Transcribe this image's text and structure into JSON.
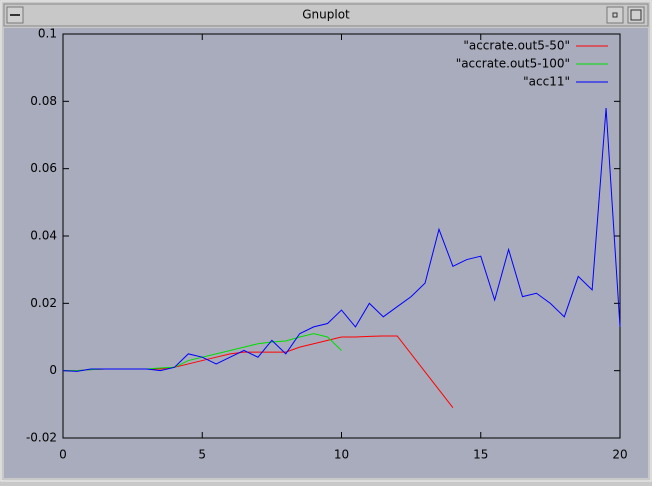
{
  "window": {
    "title": "Gnuplot"
  },
  "chart_data": {
    "type": "line",
    "xlim": [
      0,
      20
    ],
    "xticks": [
      0,
      5,
      10,
      15,
      20
    ],
    "ylim": [
      -0.02,
      0.1
    ],
    "yticks": [
      -0.02,
      0,
      0.02,
      0.04,
      0.06,
      0.08,
      0.1
    ],
    "legend": "top-right",
    "series": [
      {
        "name": "\"accrate.out5-50\"",
        "color": "#ff0000",
        "x": [
          0,
          0.5,
          1,
          1.5,
          2,
          2.5,
          3,
          3.5,
          4,
          4.5,
          5,
          5.5,
          6,
          6.5,
          7,
          7.5,
          8,
          8.5,
          9,
          9.5,
          10,
          10.5,
          11,
          11.5,
          12,
          14
        ],
        "values": [
          0,
          0,
          0.0003,
          0.0005,
          0.0005,
          0.0005,
          0.0005,
          0.0005,
          0.001,
          0.002,
          0.003,
          0.004,
          0.005,
          0.0055,
          0.0055,
          0.0055,
          0.0055,
          0.007,
          0.008,
          0.009,
          0.01,
          0.01,
          0.0102,
          0.0103,
          0.0103,
          -0.011
        ]
      },
      {
        "name": "\"accrate.out5-100\"",
        "color": "#00dd00",
        "x": [
          0,
          0.5,
          1,
          1.5,
          2,
          2.5,
          3,
          3.5,
          4,
          4.5,
          5,
          5.5,
          6,
          6.5,
          7,
          7.5,
          8,
          8.5,
          9,
          9.5,
          10
        ],
        "values": [
          0,
          0,
          0.0003,
          0.0005,
          0.0005,
          0.0005,
          0.0005,
          0.0008,
          0.001,
          0.003,
          0.004,
          0.005,
          0.006,
          0.007,
          0.008,
          0.0085,
          0.0088,
          0.01,
          0.011,
          0.01,
          0.006
        ]
      },
      {
        "name": "\"acc11\"",
        "color": "#0000ff",
        "x": [
          0,
          0.5,
          1,
          1.5,
          2,
          2.5,
          3,
          3.5,
          4,
          4.5,
          5,
          5.5,
          6,
          6.5,
          7,
          7.5,
          8,
          8.5,
          9,
          9.5,
          10,
          10.5,
          11,
          11.5,
          12,
          12.5,
          13,
          13.5,
          14,
          14.5,
          15,
          15.5,
          16,
          16.5,
          17,
          17.5,
          18,
          18.5,
          19,
          19.5,
          20
        ],
        "values": [
          0,
          -0.0002,
          0.0005,
          0.0005,
          0.0005,
          0.0005,
          0.0005,
          0,
          0.001,
          0.005,
          0.004,
          0.002,
          0.004,
          0.006,
          0.004,
          0.009,
          0.005,
          0.011,
          0.013,
          0.014,
          0.018,
          0.013,
          0.02,
          0.016,
          0.019,
          0.022,
          0.026,
          0.042,
          0.031,
          0.033,
          0.034,
          0.021,
          0.036,
          0.022,
          0.023,
          0.02,
          0.016,
          0.028,
          0.024,
          0.078,
          0.013
        ]
      }
    ]
  }
}
